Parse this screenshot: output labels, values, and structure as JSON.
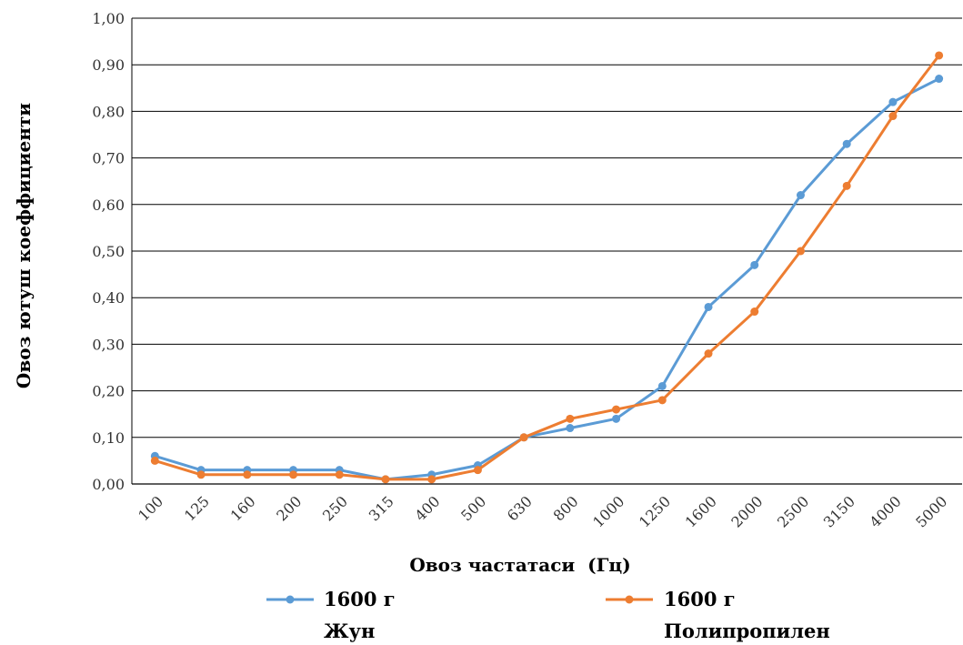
{
  "chart_data": {
    "type": "line",
    "title": "",
    "xlabel": "Овоз частатаси  (Гц)",
    "ylabel": "Овоз ютуш коеффициенти",
    "ylim": [
      0,
      1
    ],
    "yticks": [
      "0,00",
      "0,10",
      "0,20",
      "0,30",
      "0,40",
      "0,50",
      "0,60",
      "0,70",
      "0,80",
      "0,90",
      "1,00"
    ],
    "grid": true,
    "legend_position": "bottom",
    "categories": [
      "100",
      "125",
      "160",
      "200",
      "250",
      "315",
      "400",
      "500",
      "630",
      "800",
      "1000",
      "1250",
      "1600",
      "2000",
      "2500",
      "3150",
      "4000",
      "5000"
    ],
    "series": [
      {
        "name_line1": "1600 г",
        "name_line2": "Жун",
        "color": "#5b9bd5",
        "values": [
          0.06,
          0.03,
          0.03,
          0.03,
          0.03,
          0.01,
          0.02,
          0.04,
          0.1,
          0.12,
          0.14,
          0.21,
          0.38,
          0.47,
          0.62,
          0.73,
          0.82,
          0.87
        ]
      },
      {
        "name_line1": "1600 г",
        "name_line2": "Полипропилен",
        "color": "#ed7d31",
        "values": [
          0.05,
          0.02,
          0.02,
          0.02,
          0.02,
          0.01,
          0.01,
          0.03,
          0.1,
          0.14,
          0.16,
          0.18,
          0.28,
          0.37,
          0.5,
          0.64,
          0.79,
          0.92
        ]
      }
    ]
  }
}
